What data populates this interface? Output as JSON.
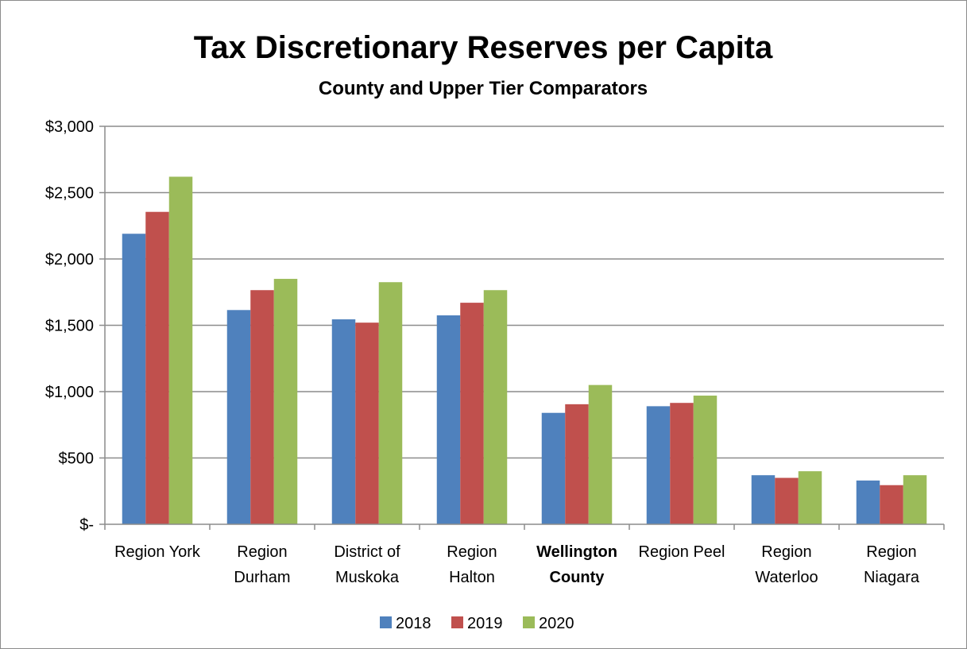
{
  "chart_data": {
    "type": "bar",
    "title": "Tax Discretionary Reserves per Capita",
    "subtitle": "County and Upper Tier Comparators",
    "xlabel": "",
    "ylabel": "",
    "ylim": [
      0,
      3000
    ],
    "yticks": [
      0,
      500,
      1000,
      1500,
      2000,
      2500,
      3000
    ],
    "ytick_labels": [
      "$-",
      "$500",
      "$1,000",
      "$1,500",
      "$2,000",
      "$2,500",
      "$3,000"
    ],
    "grid": true,
    "legend_position": "bottom",
    "categories": [
      "Region York",
      "Region Durham",
      "District of Muskoka",
      "Region Halton",
      "Wellington County",
      "Region Peel",
      "Region Waterloo",
      "Region Niagara"
    ],
    "category_lines": [
      [
        "Region York"
      ],
      [
        "Region",
        "Durham"
      ],
      [
        "District of",
        "Muskoka"
      ],
      [
        "Region",
        "Halton"
      ],
      [
        "Wellington",
        "County"
      ],
      [
        "Region Peel"
      ],
      [
        "Region",
        "Waterloo"
      ],
      [
        "Region",
        "Niagara"
      ]
    ],
    "bold_category": "Wellington County",
    "series": [
      {
        "name": "2018",
        "color": "#4f81bd",
        "values": [
          2190,
          1615,
          1545,
          1575,
          840,
          890,
          370,
          330
        ]
      },
      {
        "name": "2019",
        "color": "#c0504d",
        "values": [
          2355,
          1765,
          1520,
          1670,
          905,
          915,
          350,
          295
        ]
      },
      {
        "name": "2020",
        "color": "#9bbb59",
        "values": [
          2620,
          1850,
          1825,
          1765,
          1050,
          970,
          400,
          370
        ]
      }
    ]
  }
}
